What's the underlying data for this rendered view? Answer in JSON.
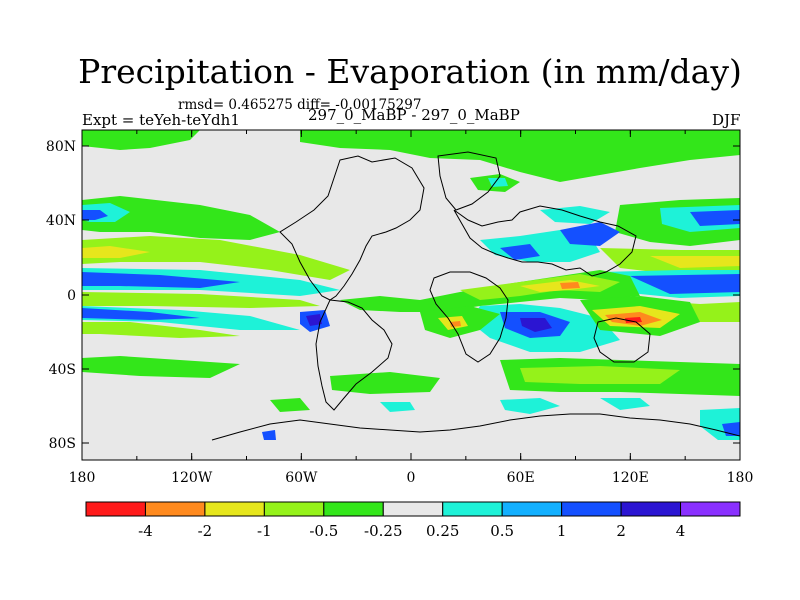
{
  "title": "Precipitation - Evaporation (in mm/day)",
  "stats": "rmsd= 0.465275 diff= -0.00175297",
  "experiment": "Expt = teYeh-teYdh1",
  "case": "297_0_MaBP - 297_0_MaBP",
  "season": "DJF",
  "chart_data": {
    "type": "heatmap",
    "x_ticks": [
      "180",
      "120W",
      "60W",
      "0",
      "60E",
      "120E",
      "180"
    ],
    "y_ticks": [
      "80N",
      "40N",
      "0",
      "40S",
      "80S"
    ],
    "colorbar": {
      "labels": [
        "-4",
        "-2",
        "-1",
        "-0.5",
        "-0.25",
        "0.25",
        "0.5",
        "1",
        "2",
        "4"
      ],
      "colors": [
        "#ff1a1a",
        "#ff8a1e",
        "#e6e61c",
        "#95f21a",
        "#33e61a",
        "#e8e8e8",
        "#1ef2d8",
        "#13b0ff",
        "#1450ff",
        "#2b15d2",
        "#8a30ff"
      ]
    }
  }
}
